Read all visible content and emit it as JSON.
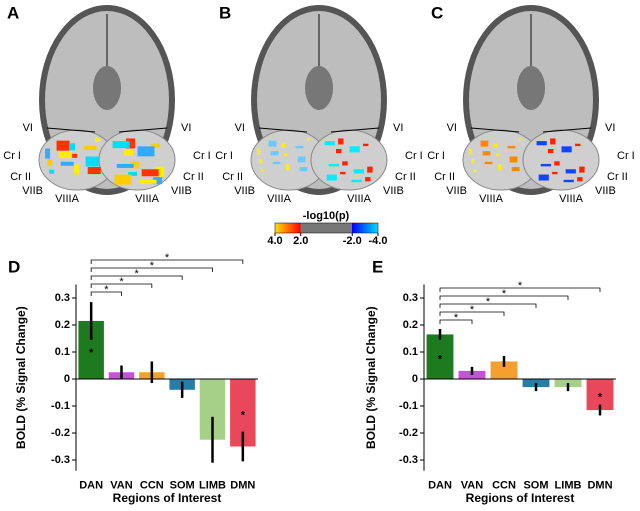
{
  "brain_panels": [
    {
      "letter": "A",
      "labels": [
        "VI",
        "VI",
        "Cr I",
        "Cr I",
        "Cr II",
        "Cr II",
        "VIIB",
        "VIIB",
        "VIIIA",
        "VIIIA"
      ]
    },
    {
      "letter": "B",
      "labels": [
        "VI",
        "VI",
        "Cr I",
        "Cr I",
        "Cr II",
        "Cr II",
        "VIIB",
        "VIIB",
        "VIIIA",
        "VIIIA"
      ]
    },
    {
      "letter": "C",
      "labels": [
        "VI",
        "VI",
        "Cr I",
        "Cr I",
        "Cr II",
        "Cr II",
        "VIIB",
        "VIIB",
        "VIIIA",
        "VIIIA"
      ]
    }
  ],
  "colorbar": {
    "title": "-log10(p)",
    "ticks": [
      {
        "value": 4,
        "label": "4.0"
      },
      {
        "value": 2,
        "label": "2.0"
      },
      {
        "value": -2,
        "label": "-2.0"
      },
      {
        "value": -4,
        "label": "-4.0"
      }
    ]
  },
  "chart_data": [
    {
      "type": "bar",
      "panel": "D",
      "xlabel": "Regions of Interest",
      "ylabel": "BOLD (% Signal Change)",
      "categories": [
        "DAN",
        "VAN",
        "CCN",
        "SOM",
        "LIMB",
        "DMN"
      ],
      "values": [
        0.215,
        0.025,
        0.025,
        -0.04,
        -0.225,
        -0.25
      ],
      "errors": [
        0.07,
        0.025,
        0.04,
        0.03,
        0.085,
        0.055
      ],
      "colors": [
        "#1e7a1e",
        "#cc4ee0",
        "#f5a02e",
        "#2a7ca8",
        "#a6cf88",
        "#e8485a"
      ],
      "bar_marks": [
        "*",
        null,
        null,
        null,
        null,
        "*"
      ],
      "significance": [
        {
          "from": 0,
          "to": 1,
          "label": "*"
        },
        {
          "from": 0,
          "to": 2,
          "label": "*"
        },
        {
          "from": 0,
          "to": 3,
          "label": "*"
        },
        {
          "from": 0,
          "to": 4,
          "label": "*"
        },
        {
          "from": 0,
          "to": 5,
          "label": "*"
        }
      ],
      "ylim": [
        -0.34,
        0.35
      ],
      "yticks": [
        -0.3,
        -0.2,
        -0.1,
        0,
        0.1,
        0.2,
        0.3
      ]
    },
    {
      "type": "bar",
      "panel": "E",
      "xlabel": "Regions of Interest",
      "ylabel": "BOLD (% Signal Change)",
      "categories": [
        "DAN",
        "VAN",
        "CCN",
        "SOM",
        "LIMB",
        "DMN"
      ],
      "values": [
        0.165,
        0.03,
        0.065,
        -0.03,
        -0.03,
        -0.115
      ],
      "errors": [
        0.02,
        0.015,
        0.02,
        0.015,
        0.015,
        0.02
      ],
      "colors": [
        "#1e7a1e",
        "#cc4ee0",
        "#f5a02e",
        "#2a7ca8",
        "#a6cf88",
        "#e8485a"
      ],
      "bar_marks": [
        "*",
        null,
        null,
        null,
        null,
        "*"
      ],
      "significance": [
        {
          "from": 0,
          "to": 1,
          "label": "*"
        },
        {
          "from": 0,
          "to": 2,
          "label": "*"
        },
        {
          "from": 0,
          "to": 3,
          "label": "*"
        },
        {
          "from": 0,
          "to": 4,
          "label": "*"
        },
        {
          "from": 0,
          "to": 5,
          "label": "*"
        }
      ],
      "ylim": [
        -0.34,
        0.35
      ],
      "yticks": [
        -0.3,
        -0.2,
        -0.1,
        0,
        0.1,
        0.2,
        0.3
      ]
    }
  ]
}
